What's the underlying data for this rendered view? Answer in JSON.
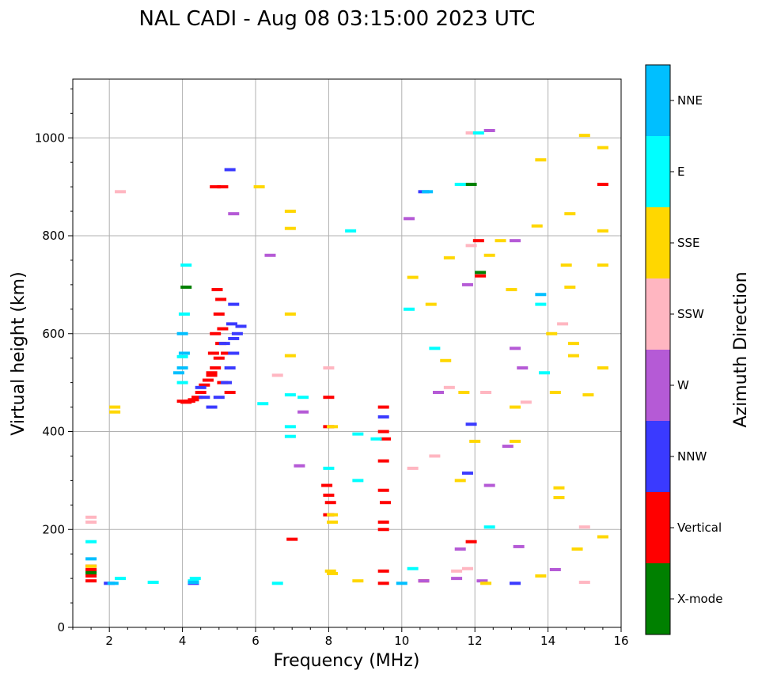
{
  "chart_data": {
    "type": "scatter",
    "title": "NAL CADI - Aug 08 03:15:00 2023 UTC",
    "xlabel": "Frequency (MHz)",
    "ylabel": "Virtual height (km)",
    "xlim": [
      1,
      16
    ],
    "ylim": [
      0,
      1120
    ],
    "x_ticks": [
      2,
      4,
      6,
      8,
      10,
      12,
      14,
      16
    ],
    "y_ticks": [
      0,
      200,
      400,
      600,
      800,
      1000
    ],
    "grid": true,
    "colorbar": {
      "title": "Azimuth Direction",
      "categories": [
        {
          "name": "X-mode",
          "color": "#008000"
        },
        {
          "name": "Vertical",
          "color": "#ff0000"
        },
        {
          "name": "NNW",
          "color": "#3a3aff"
        },
        {
          "name": "W",
          "color": "#b55ad6"
        },
        {
          "name": "SSW",
          "color": "#ffb6c1"
        },
        {
          "name": "SSE",
          "color": "#ffd700"
        },
        {
          "name": "E",
          "color": "#00ffff"
        },
        {
          "name": "NNE",
          "color": "#00bfff"
        }
      ]
    },
    "series": [
      {
        "name": "X-mode",
        "points": [
          [
            4.1,
            695
          ],
          [
            12.15,
            725
          ],
          [
            11.9,
            905
          ],
          [
            1.5,
            110
          ],
          [
            1.5,
            115
          ]
        ]
      },
      {
        "name": "Vertical",
        "points": [
          [
            4.0,
            462
          ],
          [
            4.1,
            460
          ],
          [
            4.2,
            462
          ],
          [
            4.3,
            465
          ],
          [
            4.4,
            470
          ],
          [
            4.5,
            480
          ],
          [
            4.6,
            495
          ],
          [
            4.7,
            505
          ],
          [
            4.8,
            515
          ],
          [
            4.9,
            530
          ],
          [
            5.0,
            550
          ],
          [
            5.05,
            580
          ],
          [
            5.1,
            610
          ],
          [
            5.0,
            640
          ],
          [
            5.05,
            670
          ],
          [
            4.95,
            690
          ],
          [
            4.9,
            600
          ],
          [
            4.85,
            560
          ],
          [
            4.8,
            520
          ],
          [
            5.3,
            480
          ],
          [
            5.1,
            500
          ],
          [
            5.2,
            560
          ],
          [
            4.9,
            900
          ],
          [
            5.1,
            900
          ],
          [
            1.5,
            105
          ],
          [
            1.5,
            95
          ],
          [
            1.5,
            125
          ],
          [
            1.5,
            118
          ],
          [
            7.0,
            180
          ],
          [
            8.0,
            470
          ],
          [
            8.0,
            410
          ],
          [
            7.95,
            290
          ],
          [
            8.0,
            270
          ],
          [
            8.05,
            255
          ],
          [
            8.0,
            230
          ],
          [
            9.5,
            450
          ],
          [
            9.5,
            400
          ],
          [
            9.55,
            385
          ],
          [
            9.5,
            340
          ],
          [
            9.5,
            280
          ],
          [
            9.55,
            255
          ],
          [
            9.5,
            215
          ],
          [
            9.5,
            200
          ],
          [
            9.5,
            115
          ],
          [
            9.5,
            90
          ],
          [
            10.6,
            95
          ],
          [
            11.9,
            175
          ],
          [
            12.15,
            718
          ],
          [
            15.5,
            905
          ],
          [
            12.1,
            790
          ]
        ]
      },
      {
        "name": "NNW",
        "points": [
          [
            4.8,
            450
          ],
          [
            5.0,
            470
          ],
          [
            5.2,
            500
          ],
          [
            5.3,
            530
          ],
          [
            5.4,
            560
          ],
          [
            5.5,
            600
          ],
          [
            5.35,
            620
          ],
          [
            5.6,
            615
          ],
          [
            5.4,
            590
          ],
          [
            5.15,
            580
          ],
          [
            4.6,
            470
          ],
          [
            4.5,
            490
          ],
          [
            5.3,
            935
          ],
          [
            5.4,
            660
          ],
          [
            9.5,
            430
          ],
          [
            10.6,
            890
          ],
          [
            11.9,
            415
          ],
          [
            11.8,
            315
          ],
          [
            13.1,
            90
          ],
          [
            4.3,
            90
          ],
          [
            2.0,
            90
          ]
        ]
      },
      {
        "name": "W",
        "points": [
          [
            5.4,
            845
          ],
          [
            6.4,
            760
          ],
          [
            7.3,
            440
          ],
          [
            7.2,
            330
          ],
          [
            11.0,
            480
          ],
          [
            11.8,
            700
          ],
          [
            12.4,
            1015
          ],
          [
            13.1,
            790
          ],
          [
            13.1,
            570
          ],
          [
            13.3,
            530
          ],
          [
            12.9,
            370
          ],
          [
            13.2,
            165
          ],
          [
            14.2,
            118
          ],
          [
            11.5,
            100
          ],
          [
            10.6,
            95
          ],
          [
            10.2,
            835
          ],
          [
            11.6,
            160
          ],
          [
            12.2,
            95
          ],
          [
            12.4,
            290
          ]
        ]
      },
      {
        "name": "SSW",
        "points": [
          [
            1.5,
            225
          ],
          [
            1.5,
            215
          ],
          [
            2.3,
            890
          ],
          [
            6.6,
            515
          ],
          [
            8.0,
            530
          ],
          [
            10.3,
            325
          ],
          [
            10.9,
            350
          ],
          [
            11.3,
            490
          ],
          [
            11.9,
            1010
          ],
          [
            11.9,
            780
          ],
          [
            12.3,
            480
          ],
          [
            13.4,
            460
          ],
          [
            14.4,
            620
          ],
          [
            15.0,
            205
          ],
          [
            15.0,
            92
          ],
          [
            11.5,
            115
          ],
          [
            11.8,
            120
          ]
        ]
      },
      {
        "name": "SSE",
        "points": [
          [
            2.15,
            450
          ],
          [
            2.15,
            440
          ],
          [
            6.1,
            900
          ],
          [
            6.95,
            850
          ],
          [
            6.95,
            815
          ],
          [
            6.95,
            555
          ],
          [
            6.95,
            640
          ],
          [
            8.1,
            410
          ],
          [
            8.1,
            230
          ],
          [
            8.1,
            215
          ],
          [
            8.1,
            110
          ],
          [
            8.05,
            115
          ],
          [
            8.8,
            95
          ],
          [
            10.3,
            715
          ],
          [
            10.8,
            660
          ],
          [
            11.3,
            755
          ],
          [
            11.2,
            545
          ],
          [
            11.7,
            480
          ],
          [
            12.0,
            380
          ],
          [
            12.3,
            90
          ],
          [
            12.4,
            760
          ],
          [
            12.7,
            790
          ],
          [
            13.0,
            690
          ],
          [
            13.1,
            450
          ],
          [
            13.1,
            380
          ],
          [
            13.7,
            820
          ],
          [
            13.8,
            955
          ],
          [
            14.1,
            600
          ],
          [
            14.2,
            480
          ],
          [
            14.3,
            285
          ],
          [
            14.3,
            265
          ],
          [
            14.5,
            740
          ],
          [
            14.6,
            695
          ],
          [
            14.6,
            845
          ],
          [
            14.7,
            580
          ],
          [
            14.7,
            555
          ],
          [
            14.8,
            160
          ],
          [
            15.0,
            1005
          ],
          [
            15.1,
            475
          ],
          [
            15.5,
            980
          ],
          [
            15.5,
            810
          ],
          [
            15.5,
            740
          ],
          [
            15.5,
            530
          ],
          [
            15.5,
            185
          ],
          [
            13.8,
            105
          ],
          [
            11.6,
            300
          ],
          [
            1.5,
            125
          ]
        ]
      },
      {
        "name": "E",
        "points": [
          [
            4.0,
            553
          ],
          [
            4.05,
            640
          ],
          [
            4.1,
            740
          ],
          [
            4.0,
            500
          ],
          [
            1.5,
            175
          ],
          [
            2.3,
            100
          ],
          [
            3.2,
            92
          ],
          [
            4.3,
            95
          ],
          [
            4.35,
            100
          ],
          [
            6.2,
            457
          ],
          [
            6.6,
            90
          ],
          [
            6.95,
            475
          ],
          [
            6.95,
            410
          ],
          [
            6.95,
            390
          ],
          [
            7.3,
            470
          ],
          [
            8.0,
            325
          ],
          [
            8.8,
            300
          ],
          [
            8.8,
            395
          ],
          [
            9.3,
            385
          ],
          [
            10.2,
            650
          ],
          [
            10.3,
            120
          ],
          [
            10.9,
            570
          ],
          [
            12.4,
            205
          ],
          [
            13.8,
            660
          ],
          [
            13.9,
            520
          ],
          [
            11.6,
            905
          ],
          [
            12.1,
            1010
          ],
          [
            8.6,
            810
          ]
        ]
      },
      {
        "name": "NNE",
        "points": [
          [
            3.9,
            520
          ],
          [
            4.0,
            530
          ],
          [
            4.05,
            560
          ],
          [
            4.0,
            600
          ],
          [
            1.5,
            140
          ],
          [
            2.1,
            90
          ],
          [
            4.3,
            92
          ],
          [
            10.7,
            890
          ],
          [
            10.0,
            90
          ],
          [
            13.8,
            680
          ]
        ]
      }
    ]
  }
}
